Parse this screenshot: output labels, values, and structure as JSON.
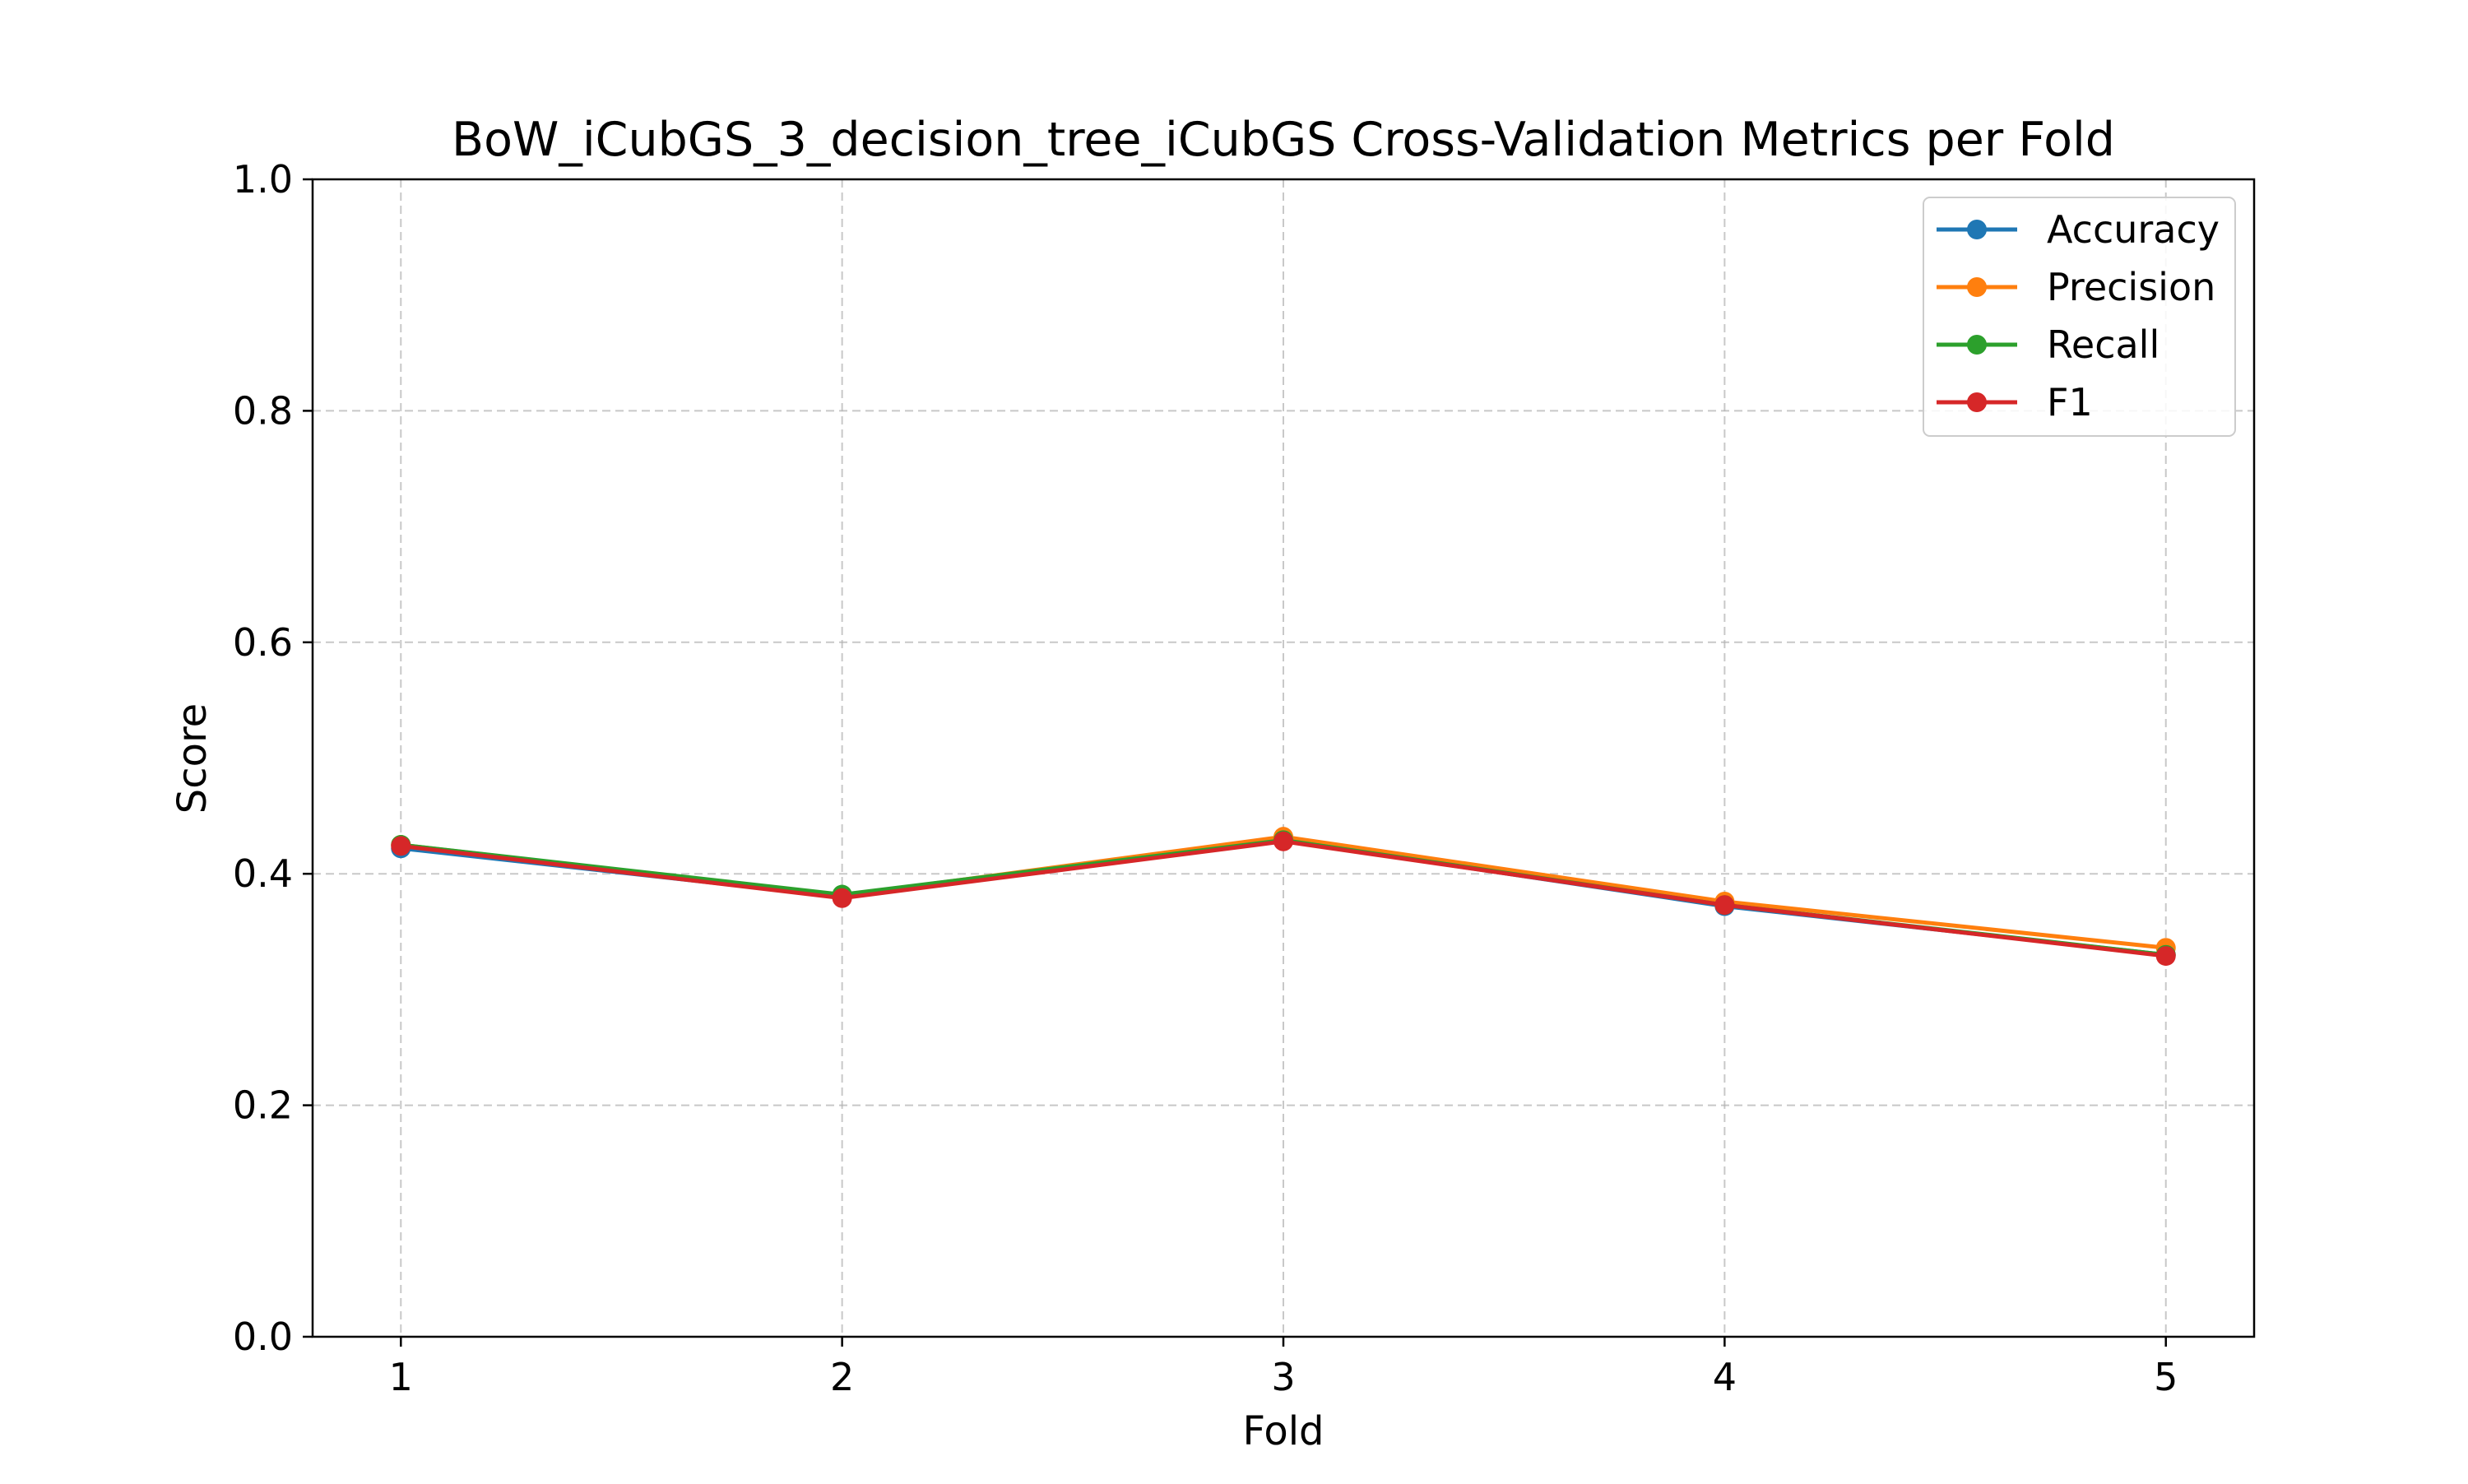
{
  "chart_data": {
    "type": "line",
    "title": "BoW_iCubGS_3_decision_tree_iCubGS Cross-Validation Metrics per Fold",
    "xlabel": "Fold",
    "ylabel": "Score",
    "x": [
      1,
      2,
      3,
      4,
      5
    ],
    "x_tick_labels": [
      "1",
      "2",
      "3",
      "4",
      "5"
    ],
    "xlim": [
      0.8,
      5.2
    ],
    "ylim": [
      0.0,
      1.0
    ],
    "y_ticks": [
      0.0,
      0.2,
      0.4,
      0.6,
      0.8,
      1.0
    ],
    "y_tick_labels": [
      "0.0",
      "0.2",
      "0.4",
      "0.6",
      "0.8",
      "1.0"
    ],
    "grid": true,
    "legend_position": "top-right",
    "series": [
      {
        "name": "Accuracy",
        "color": "#1f77b4",
        "marker": "circle",
        "values": [
          0.422,
          0.38,
          0.429,
          0.372,
          0.33
        ]
      },
      {
        "name": "Precision",
        "color": "#ff7f0e",
        "marker": "circle",
        "values": [
          0.425,
          0.381,
          0.432,
          0.376,
          0.336
        ]
      },
      {
        "name": "Recall",
        "color": "#2ca02c",
        "marker": "circle",
        "values": [
          0.425,
          0.382,
          0.429,
          0.373,
          0.33
        ]
      },
      {
        "name": "F1",
        "color": "#d62728",
        "marker": "circle",
        "values": [
          0.424,
          0.379,
          0.428,
          0.373,
          0.329
        ]
      }
    ]
  }
}
